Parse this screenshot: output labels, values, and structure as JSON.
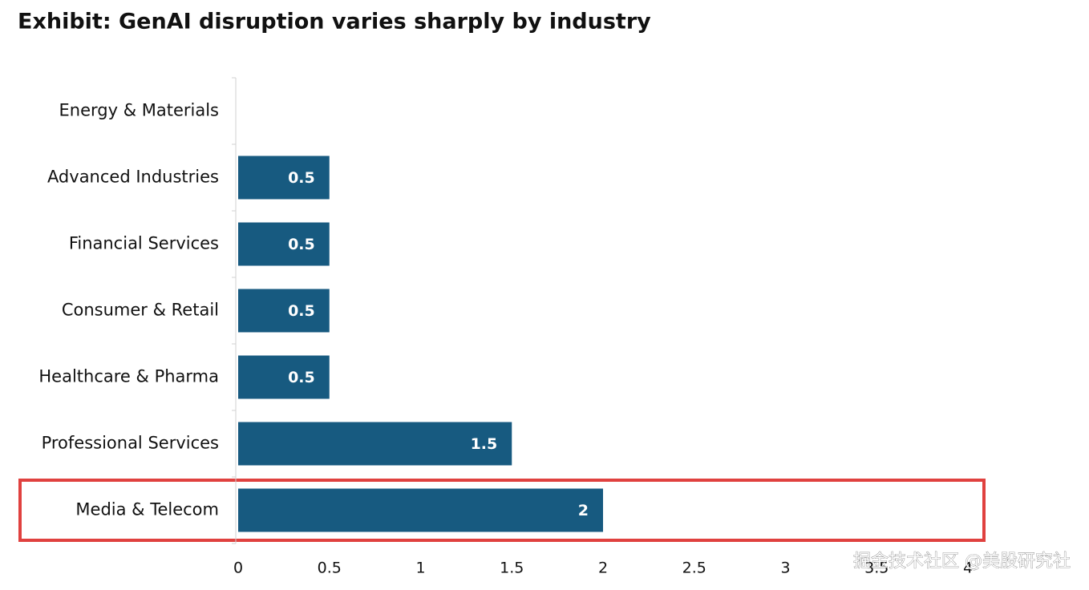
{
  "chart_data": {
    "type": "barh",
    "title": "Exhibit: GenAI disruption varies sharply by industry",
    "categories": [
      "Energy & Materials",
      "Advanced Industries",
      "Financial Services",
      "Consumer & Retail",
      "Healthcare & Pharma",
      "Professional Services",
      "Media & Telecom"
    ],
    "values": [
      0,
      0.5,
      0.5,
      0.5,
      0.5,
      1.5,
      2
    ],
    "color": "#175a80",
    "xlim": [
      0,
      4
    ],
    "xticks": [
      0,
      0.5,
      1,
      1.5,
      2,
      2.5,
      3,
      3.5,
      4
    ],
    "watermark": "掘金技术社区 @美股研究社"
  }
}
